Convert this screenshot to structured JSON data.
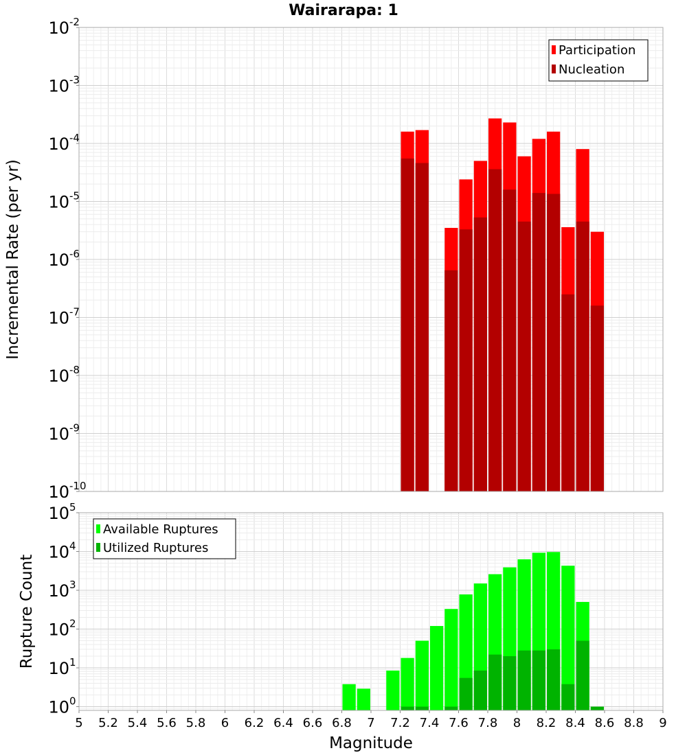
{
  "chart_data": [
    {
      "type": "bar",
      "title": "Wairarapa: 1",
      "xlabel": "Magnitude",
      "ylabel": "Incremental Rate (per yr)",
      "yscale": "log",
      "ylim": [
        1e-10,
        0.01
      ],
      "xlim": [
        5,
        9
      ],
      "grid": true,
      "legend_position": "top-right",
      "bin_width": 0.1,
      "series": [
        {
          "name": "Participation",
          "color": "#ff0000",
          "points": [
            {
              "x": 7.25,
              "y": 0.00016
            },
            {
              "x": 7.35,
              "y": 0.00017
            },
            {
              "x": 7.55,
              "y": 3.5e-06
            },
            {
              "x": 7.65,
              "y": 2.4e-05
            },
            {
              "x": 7.75,
              "y": 5e-05
            },
            {
              "x": 7.85,
              "y": 0.00027
            },
            {
              "x": 7.95,
              "y": 0.00023
            },
            {
              "x": 8.05,
              "y": 6e-05
            },
            {
              "x": 8.15,
              "y": 0.00012
            },
            {
              "x": 8.25,
              "y": 0.00016
            },
            {
              "x": 8.35,
              "y": 3.6e-06
            },
            {
              "x": 8.45,
              "y": 8e-05
            },
            {
              "x": 8.55,
              "y": 3e-06
            }
          ]
        },
        {
          "name": "Nucleation",
          "color": "#b30000",
          "points": [
            {
              "x": 7.25,
              "y": 5.5e-05
            },
            {
              "x": 7.35,
              "y": 4.6e-05
            },
            {
              "x": 7.55,
              "y": 6.5e-07
            },
            {
              "x": 7.65,
              "y": 3.3e-06
            },
            {
              "x": 7.75,
              "y": 5.3e-06
            },
            {
              "x": 7.85,
              "y": 3.6e-05
            },
            {
              "x": 7.95,
              "y": 1.6e-05
            },
            {
              "x": 8.05,
              "y": 4.5e-06
            },
            {
              "x": 8.15,
              "y": 1.4e-05
            },
            {
              "x": 8.25,
              "y": 1.35e-05
            },
            {
              "x": 8.35,
              "y": 2.5e-07
            },
            {
              "x": 8.45,
              "y": 4.5e-06
            },
            {
              "x": 8.55,
              "y": 1.6e-07
            }
          ]
        }
      ]
    },
    {
      "type": "bar",
      "xlabel": "Magnitude",
      "ylabel": "Rupture Count",
      "yscale": "log",
      "ylim": [
        0.8,
        100000.0
      ],
      "xlim": [
        5,
        9
      ],
      "grid": true,
      "legend_position": "top-left",
      "bin_width": 0.1,
      "x_ticks": [
        "5",
        "5.2",
        "5.4",
        "5.6",
        "5.8",
        "6",
        "6.2",
        "6.4",
        "6.6",
        "6.8",
        "7",
        "7.2",
        "7.4",
        "7.6",
        "7.8",
        "8",
        "8.2",
        "8.4",
        "8.6",
        "8.8",
        "9"
      ],
      "series": [
        {
          "name": "Available Ruptures",
          "color": "#00ff00",
          "points": [
            {
              "x": 6.85,
              "y": 3.8
            },
            {
              "x": 6.95,
              "y": 2.9
            },
            {
              "x": 7.15,
              "y": 8.5
            },
            {
              "x": 7.25,
              "y": 18
            },
            {
              "x": 7.35,
              "y": 50
            },
            {
              "x": 7.45,
              "y": 120
            },
            {
              "x": 7.55,
              "y": 330
            },
            {
              "x": 7.65,
              "y": 780
            },
            {
              "x": 7.75,
              "y": 1500
            },
            {
              "x": 7.85,
              "y": 2600
            },
            {
              "x": 7.95,
              "y": 3900
            },
            {
              "x": 8.05,
              "y": 6300
            },
            {
              "x": 8.15,
              "y": 9300
            },
            {
              "x": 8.25,
              "y": 9700
            },
            {
              "x": 8.35,
              "y": 4300
            },
            {
              "x": 8.45,
              "y": 500
            }
          ]
        },
        {
          "name": "Utilized Ruptures",
          "color": "#00b300",
          "points": [
            {
              "x": 7.25,
              "y": 1
            },
            {
              "x": 7.35,
              "y": 1
            },
            {
              "x": 7.55,
              "y": 1
            },
            {
              "x": 7.65,
              "y": 5.5
            },
            {
              "x": 7.75,
              "y": 8.5
            },
            {
              "x": 7.85,
              "y": 22
            },
            {
              "x": 7.95,
              "y": 20
            },
            {
              "x": 8.05,
              "y": 28
            },
            {
              "x": 8.15,
              "y": 28
            },
            {
              "x": 8.25,
              "y": 30
            },
            {
              "x": 8.35,
              "y": 3.8
            },
            {
              "x": 8.45,
              "y": 50
            },
            {
              "x": 8.55,
              "y": 1
            }
          ]
        }
      ]
    }
  ]
}
